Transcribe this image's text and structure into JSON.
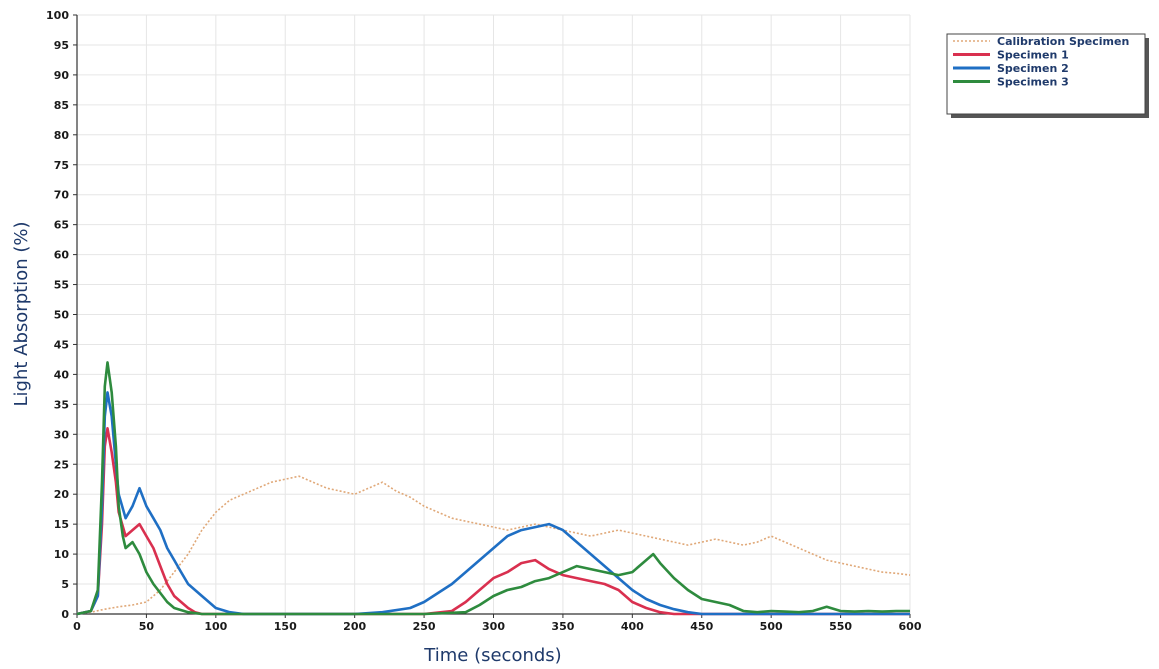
{
  "chart_data": {
    "type": "line",
    "title": "",
    "xlabel": "Time (seconds)",
    "ylabel": "Light Absorption (%)",
    "xlim": [
      0,
      600
    ],
    "ylim": [
      0,
      100
    ],
    "x_ticks": [
      "0",
      "50",
      "100",
      "150",
      "200",
      "250",
      "300",
      "350",
      "400",
      "450",
      "500",
      "550",
      "600"
    ],
    "y_ticks": [
      "0",
      "5",
      "10",
      "15",
      "20",
      "25",
      "30",
      "35",
      "40",
      "45",
      "50",
      "55",
      "60",
      "65",
      "70",
      "75",
      "80",
      "85",
      "90",
      "95",
      "100"
    ],
    "grid": true,
    "legend_position": "top-right, outside plot",
    "series": [
      {
        "name": "Calibration Specimen",
        "color": "#e0a878",
        "style": "dotted",
        "points": [
          [
            0,
            0
          ],
          [
            10,
            0.3
          ],
          [
            20,
            0.8
          ],
          [
            30,
            1.2
          ],
          [
            40,
            1.5
          ],
          [
            50,
            2
          ],
          [
            60,
            4
          ],
          [
            70,
            7
          ],
          [
            80,
            10
          ],
          [
            90,
            14
          ],
          [
            100,
            17
          ],
          [
            110,
            19
          ],
          [
            120,
            20
          ],
          [
            130,
            21
          ],
          [
            140,
            22
          ],
          [
            150,
            22.5
          ],
          [
            160,
            23
          ],
          [
            170,
            22
          ],
          [
            180,
            21
          ],
          [
            190,
            20.5
          ],
          [
            200,
            20
          ],
          [
            210,
            21
          ],
          [
            220,
            22
          ],
          [
            230,
            20.5
          ],
          [
            240,
            19.5
          ],
          [
            250,
            18
          ],
          [
            260,
            17
          ],
          [
            270,
            16
          ],
          [
            280,
            15.5
          ],
          [
            290,
            15
          ],
          [
            300,
            14.5
          ],
          [
            310,
            14
          ],
          [
            320,
            14.5
          ],
          [
            330,
            15
          ],
          [
            340,
            14.5
          ],
          [
            350,
            14
          ],
          [
            360,
            13.5
          ],
          [
            370,
            13
          ],
          [
            380,
            13.5
          ],
          [
            390,
            14
          ],
          [
            400,
            13.5
          ],
          [
            410,
            13
          ],
          [
            420,
            12.5
          ],
          [
            430,
            12
          ],
          [
            440,
            11.5
          ],
          [
            450,
            12
          ],
          [
            460,
            12.5
          ],
          [
            470,
            12
          ],
          [
            480,
            11.5
          ],
          [
            490,
            12
          ],
          [
            500,
            13
          ],
          [
            510,
            12
          ],
          [
            520,
            11
          ],
          [
            530,
            10
          ],
          [
            540,
            9
          ],
          [
            550,
            8.5
          ],
          [
            560,
            8
          ],
          [
            570,
            7.5
          ],
          [
            580,
            7
          ],
          [
            590,
            6.8
          ],
          [
            600,
            6.5
          ]
        ]
      },
      {
        "name": "Specimen 1",
        "color": "#d9304f",
        "style": "solid",
        "points": [
          [
            0,
            0
          ],
          [
            10,
            0.5
          ],
          [
            15,
            3
          ],
          [
            18,
            15
          ],
          [
            20,
            28
          ],
          [
            22,
            31
          ],
          [
            25,
            27
          ],
          [
            28,
            22
          ],
          [
            30,
            17
          ],
          [
            35,
            13
          ],
          [
            40,
            14
          ],
          [
            45,
            15
          ],
          [
            50,
            13
          ],
          [
            55,
            11
          ],
          [
            60,
            8
          ],
          [
            65,
            5
          ],
          [
            70,
            3
          ],
          [
            75,
            2
          ],
          [
            80,
            1
          ],
          [
            85,
            0.3
          ],
          [
            90,
            0
          ],
          [
            150,
            0
          ],
          [
            200,
            0
          ],
          [
            250,
            0
          ],
          [
            270,
            0.5
          ],
          [
            280,
            2
          ],
          [
            290,
            4
          ],
          [
            300,
            6
          ],
          [
            310,
            7
          ],
          [
            320,
            8.5
          ],
          [
            330,
            9
          ],
          [
            340,
            7.5
          ],
          [
            350,
            6.5
          ],
          [
            360,
            6
          ],
          [
            370,
            5.5
          ],
          [
            380,
            5
          ],
          [
            390,
            4
          ],
          [
            400,
            2
          ],
          [
            410,
            1
          ],
          [
            420,
            0.3
          ],
          [
            430,
            0
          ],
          [
            600,
            0
          ]
        ]
      },
      {
        "name": "Specimen 2",
        "color": "#1f6fc4",
        "style": "solid",
        "points": [
          [
            0,
            0
          ],
          [
            10,
            0.5
          ],
          [
            15,
            3
          ],
          [
            18,
            18
          ],
          [
            20,
            33
          ],
          [
            22,
            37
          ],
          [
            25,
            33
          ],
          [
            28,
            25
          ],
          [
            30,
            20
          ],
          [
            35,
            16
          ],
          [
            40,
            18
          ],
          [
            45,
            21
          ],
          [
            50,
            18
          ],
          [
            55,
            16
          ],
          [
            60,
            14
          ],
          [
            65,
            11
          ],
          [
            70,
            9
          ],
          [
            75,
            7
          ],
          [
            80,
            5
          ],
          [
            90,
            3
          ],
          [
            100,
            1
          ],
          [
            110,
            0.3
          ],
          [
            120,
            0
          ],
          [
            200,
            0
          ],
          [
            220,
            0.3
          ],
          [
            240,
            1
          ],
          [
            250,
            2
          ],
          [
            260,
            3.5
          ],
          [
            270,
            5
          ],
          [
            280,
            7
          ],
          [
            290,
            9
          ],
          [
            300,
            11
          ],
          [
            310,
            13
          ],
          [
            320,
            14
          ],
          [
            330,
            14.5
          ],
          [
            340,
            15
          ],
          [
            350,
            14
          ],
          [
            360,
            12
          ],
          [
            370,
            10
          ],
          [
            380,
            8
          ],
          [
            390,
            6
          ],
          [
            400,
            4
          ],
          [
            410,
            2.5
          ],
          [
            420,
            1.5
          ],
          [
            430,
            0.8
          ],
          [
            440,
            0.3
          ],
          [
            450,
            0
          ],
          [
            600,
            0
          ]
        ]
      },
      {
        "name": "Specimen 3",
        "color": "#2e8b3e",
        "style": "solid",
        "points": [
          [
            0,
            0
          ],
          [
            10,
            0.5
          ],
          [
            15,
            4
          ],
          [
            18,
            22
          ],
          [
            20,
            38
          ],
          [
            22,
            42
          ],
          [
            25,
            37
          ],
          [
            28,
            28
          ],
          [
            30,
            18
          ],
          [
            33,
            13
          ],
          [
            35,
            11
          ],
          [
            40,
            12
          ],
          [
            45,
            10
          ],
          [
            50,
            7
          ],
          [
            55,
            5
          ],
          [
            60,
            3.5
          ],
          [
            65,
            2
          ],
          [
            70,
            1
          ],
          [
            80,
            0.3
          ],
          [
            90,
            0
          ],
          [
            250,
            0
          ],
          [
            280,
            0.3
          ],
          [
            290,
            1.5
          ],
          [
            300,
            3
          ],
          [
            310,
            4
          ],
          [
            320,
            4.5
          ],
          [
            330,
            5.5
          ],
          [
            340,
            6
          ],
          [
            350,
            7
          ],
          [
            360,
            8
          ],
          [
            370,
            7.5
          ],
          [
            380,
            7
          ],
          [
            390,
            6.5
          ],
          [
            400,
            7
          ],
          [
            410,
            9
          ],
          [
            415,
            10
          ],
          [
            420,
            8.5
          ],
          [
            430,
            6
          ],
          [
            440,
            4
          ],
          [
            450,
            2.5
          ],
          [
            460,
            2
          ],
          [
            470,
            1.5
          ],
          [
            480,
            0.5
          ],
          [
            490,
            0.3
          ],
          [
            500,
            0.5
          ],
          [
            510,
            0.4
          ],
          [
            520,
            0.3
          ],
          [
            530,
            0.5
          ],
          [
            540,
            1.2
          ],
          [
            550,
            0.5
          ],
          [
            560,
            0.4
          ],
          [
            570,
            0.5
          ],
          [
            580,
            0.4
          ],
          [
            590,
            0.5
          ],
          [
            600,
            0.5
          ]
        ]
      }
    ]
  }
}
